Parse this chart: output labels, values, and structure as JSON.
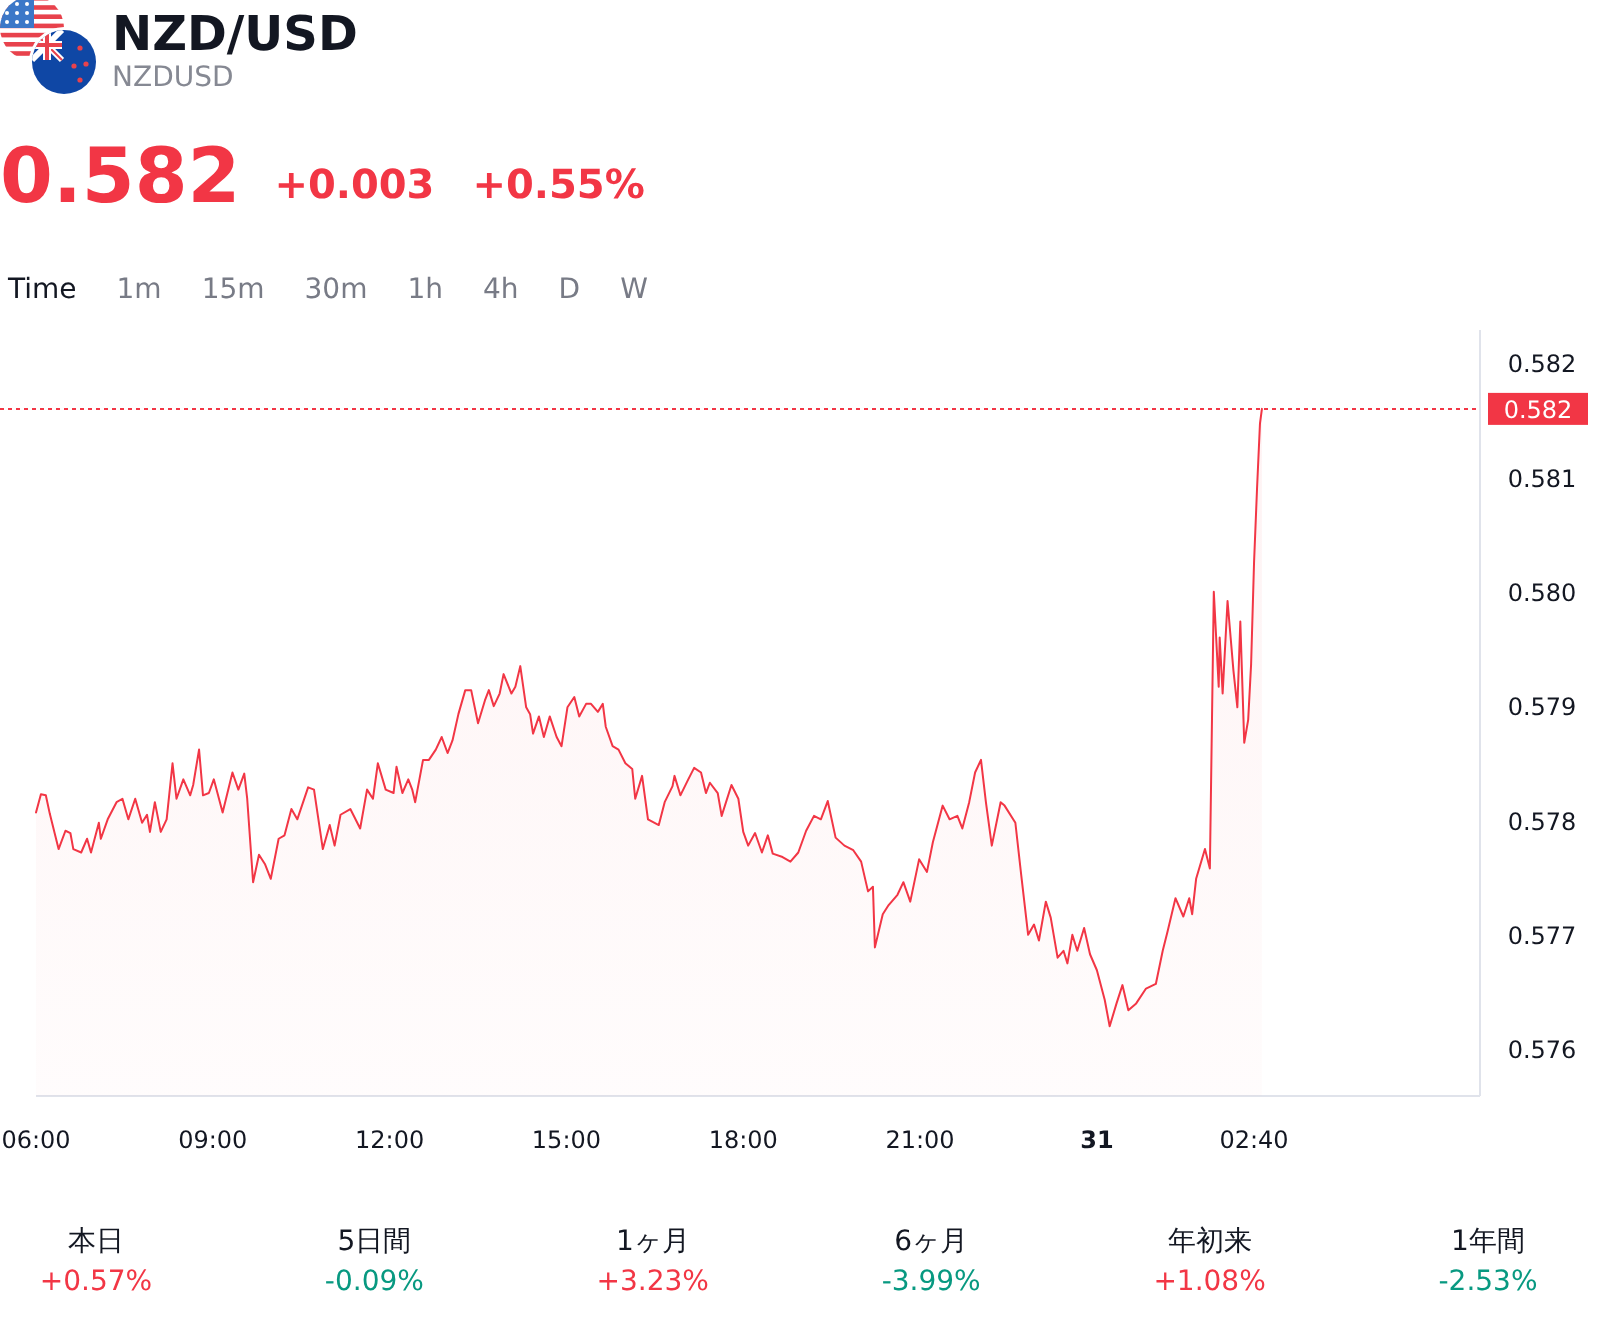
{
  "chart_data": [
    {
      "type": "other",
      "title": "NZD/USD",
      "subtitle": "NZDUSD",
      "color": "#f23645",
      "annotations": [
        "0.582",
        "+0.003",
        "+0.55%"
      ],
      "categories": [
        "Time",
        "1m",
        "15m",
        "30m",
        "1h",
        "4h",
        "D",
        "W"
      ],
      "colors": [
        "#131722",
        "#787b86",
        "#787b86",
        "#787b86",
        "#787b86",
        "#787b86",
        "#787b86",
        "#787b86"
      ]
    },
    {
      "type": "area",
      "color": "#f23645",
      "x": [
        "--01-30T06:00",
        "--01-30T06:05",
        "--01-30T06:10",
        "--01-30T06:14",
        "--01-30T06:23",
        "--01-30T06:30",
        "--01-30T06:35",
        "--01-30T06:38",
        "--01-30T06:46",
        "--01-30T06:52",
        "--01-30T06:56",
        "--01-30T07:04",
        "--01-30T07:06",
        "--01-30T07:13",
        "--01-30T07:22",
        "--01-30T07:28",
        "--01-30T07:34",
        "--01-30T07:41",
        "--01-30T07:48",
        "--01-30T07:53",
        "--01-30T07:56",
        "--01-30T08:01",
        "--01-30T08:07",
        "--01-30T08:13",
        "--01-30T08:19",
        "--01-30T08:23",
        "--01-30T08:30",
        "--01-30T08:37",
        "--01-30T08:40",
        "--01-30T08:46",
        "--01-30T08:50",
        "--01-30T08:56",
        "--01-30T09:01",
        "--01-30T09:10",
        "--01-30T09:20",
        "--01-30T09:26",
        "--01-30T09:32",
        "--01-30T09:35",
        "--01-30T09:41",
        "--01-30T09:47",
        "--01-30T09:53",
        "--01-30T09:59",
        "--01-30T10:07",
        "--01-30T10:13",
        "--01-30T10:20",
        "--01-30T10:26",
        "--01-30T10:37",
        "--01-30T10:43",
        "--01-30T10:52",
        "--01-30T10:59",
        "--01-30T11:04",
        "--01-30T11:10",
        "--01-30T11:20",
        "--01-30T11:30",
        "--01-30T11:37",
        "--01-30T11:43",
        "--01-30T11:48",
        "--01-30T11:56",
        "--01-30T12:04",
        "--01-30T12:07",
        "--01-30T12:13",
        "--01-30T12:19",
        "--01-30T12:23",
        "--01-30T12:26",
        "--01-30T12:34",
        "--01-30T12:40",
        "--01-30T12:47",
        "--01-30T12:53",
        "--01-30T12:59",
        "--01-30T13:04",
        "--01-30T13:10",
        "--01-30T13:17",
        "--01-30T13:23",
        "--01-30T13:30",
        "--01-30T13:37",
        "--01-30T13:41",
        "--01-30T13:46",
        "--01-30T13:52",
        "--01-30T13:56",
        "--01-30T14:04",
        "--01-30T14:08",
        "--01-30T14:13",
        "--01-30T14:19",
        "--01-30T14:23",
        "--01-30T14:26",
        "--01-30T14:32",
        "--01-30T14:37",
        "--01-30T14:43",
        "--01-30T14:50",
        "--01-30T14:55",
        "--01-30T15:01",
        "--01-30T15:08",
        "--01-30T15:13",
        "--01-30T15:20",
        "--01-30T15:25",
        "--01-30T15:32",
        "--01-30T15:37",
        "--01-30T15:40",
        "--01-30T15:47",
        "--01-30T15:53",
        "--01-30T16:00",
        "--01-30T16:07",
        "--01-30T16:10",
        "--01-30T16:17",
        "--01-30T16:23",
        "--01-30T16:34",
        "--01-30T16:40",
        "--01-30T16:48",
        "--01-30T16:50",
        "--01-30T16:56",
        "--01-30T17:04",
        "--01-30T17:10",
        "--01-30T17:17",
        "--01-30T17:22",
        "--01-30T17:26",
        "--01-30T17:34",
        "--01-30T17:38",
        "--01-30T17:48",
        "--01-30T17:55",
        "--01-30T18:00",
        "--01-30T18:05",
        "--01-30T18:12",
        "--01-30T18:19",
        "--01-30T18:25",
        "--01-30T18:30",
        "--01-30T18:40",
        "--01-30T18:48",
        "--01-30T18:56",
        "--01-30T19:04",
        "--01-30T19:12",
        "--01-30T19:19",
        "--01-30T19:26",
        "--01-30T19:34",
        "--01-30T19:43",
        "--01-30T19:52",
        "--01-30T20:00",
        "--01-30T20:07",
        "--01-30T20:12",
        "--01-30T20:14",
        "--01-30T20:22",
        "--01-30T20:28",
        "--01-30T20:37",
        "--01-30T20:43",
        "--01-30T20:50",
        "--01-30T20:59",
        "--01-30T21:07",
        "--01-30T21:13",
        "--01-30T21:23",
        "--01-30T21:30",
        "--01-30T21:38",
        "--01-30T21:43",
        "--01-30T21:50",
        "--01-30T21:56",
        "--01-30T22:02",
        "--01-30T22:07",
        "--01-30T22:13",
        "--01-30T22:22",
        "--01-30T22:26",
        "--01-30T22:37",
        "--01-30T22:43",
        "--01-30T22:50",
        "--01-30T22:56",
        "--01-30T23:01",
        "--01-30T23:08",
        "--01-30T23:13",
        "--01-30T23:20",
        "--01-30T23:26",
        "--01-30T23:30",
        "--01-30T23:35",
        "--01-30T23:40",
        "--01-30T23:47",
        "--01-30T23:53",
        "--01-31T00:00",
        "--01-31T00:08",
        "--01-31T00:13",
        "--01-31T00:20",
        "--01-31T00:26",
        "--01-31T00:32",
        "--01-31T00:40",
        "--01-31T00:50",
        "--01-31T01:00",
        "--01-31T01:07",
        "--01-31T01:12",
        "--01-31T01:20",
        "--01-31T01:28",
        "--01-31T01:34",
        "--01-31T01:37",
        "--01-31T01:41",
        "--01-31T01:50",
        "--01-31T01:55",
        "--01-31T01:59",
        "--01-31T02:04",
        "--01-31T02:05",
        "--01-31T02:08",
        "--01-31T02:13",
        "--01-31T02:19",
        "--01-31T02:23",
        "--01-31T02:26",
        "--01-31T02:30",
        "--01-31T02:34",
        "--01-31T02:37",
        "--01-31T02:40",
        "--01-31T02:43",
        "--01-31T02:46",
        "--01-31T02:48"
      ],
      "values": [
        0.57808,
        0.57824,
        0.57823,
        0.57807,
        0.57776,
        0.57792,
        0.5779,
        0.57776,
        0.57773,
        0.57785,
        0.57773,
        0.57799,
        0.57785,
        0.57802,
        0.57817,
        0.5782,
        0.57802,
        0.5782,
        0.57799,
        0.57806,
        0.57791,
        0.57817,
        0.57791,
        0.57802,
        0.57851,
        0.5782,
        0.57837,
        0.57823,
        0.57832,
        0.57863,
        0.57823,
        0.57825,
        0.57837,
        0.57808,
        0.57843,
        0.57828,
        0.57842,
        0.5782,
        0.57747,
        0.57771,
        0.57763,
        0.5775,
        0.57785,
        0.57788,
        0.57811,
        0.57802,
        0.5783,
        0.57828,
        0.57776,
        0.57797,
        0.57779,
        0.57806,
        0.57811,
        0.57794,
        0.57828,
        0.5782,
        0.57851,
        0.57828,
        0.57825,
        0.57848,
        0.57825,
        0.57837,
        0.57828,
        0.57817,
        0.57854,
        0.57854,
        0.57863,
        0.57874,
        0.5786,
        0.57871,
        0.57894,
        0.57915,
        0.57915,
        0.57886,
        0.57906,
        0.57915,
        0.57901,
        0.57912,
        0.57929,
        0.57912,
        0.57918,
        0.57936,
        0.579,
        0.57894,
        0.57877,
        0.57892,
        0.57874,
        0.57892,
        0.57874,
        0.57866,
        0.579,
        0.57909,
        0.57892,
        0.57903,
        0.57903,
        0.57896,
        0.57903,
        0.57883,
        0.57866,
        0.57863,
        0.57851,
        0.57846,
        0.5782,
        0.5784,
        0.57802,
        0.57797,
        0.57817,
        0.57831,
        0.5784,
        0.57823,
        0.57837,
        0.57847,
        0.57843,
        0.57825,
        0.57834,
        0.57825,
        0.57805,
        0.57832,
        0.5782,
        0.57791,
        0.57779,
        0.5779,
        0.57773,
        0.57788,
        0.57772,
        0.57769,
        0.57765,
        0.57773,
        0.57792,
        0.57805,
        0.57802,
        0.57818,
        0.57786,
        0.57779,
        0.57775,
        0.57765,
        0.57739,
        0.57743,
        0.5769,
        0.57719,
        0.57727,
        0.57736,
        0.57747,
        0.5773,
        0.57767,
        0.57756,
        0.57782,
        0.57814,
        0.57802,
        0.57805,
        0.57794,
        0.57817,
        0.57843,
        0.57854,
        0.57817,
        0.57779,
        0.57817,
        0.57814,
        0.57799,
        0.57753,
        0.57701,
        0.5771,
        0.57696,
        0.5773,
        0.57716,
        0.57681,
        0.57687,
        0.57676,
        0.57701,
        0.57687,
        0.57707,
        0.57684,
        0.5767,
        0.57644,
        0.57621,
        0.57641,
        0.57657,
        0.57635,
        0.57641,
        0.57654,
        0.57658,
        0.57687,
        0.57704,
        0.57733,
        0.57717,
        0.57733,
        0.57719,
        0.5775,
        0.57776,
        0.57759,
        0.58001,
        0.57918,
        0.57961,
        0.57912,
        0.57993,
        0.57932,
        0.579,
        0.57975,
        0.57869,
        0.57889,
        0.57938,
        0.58027,
        0.58091,
        0.58148,
        0.58161
      ],
      "xlim": [
        "--01-30T06:00",
        "--01-31T06:30"
      ],
      "ylim": [
        0.5756,
        0.5823
      ],
      "xticks": [
        {
          "value": "--01-30T06:00",
          "label": "06:00"
        },
        {
          "value": "--01-30T09:00",
          "label": "09:00"
        },
        {
          "value": "--01-30T12:00",
          "label": "12:00"
        },
        {
          "value": "--01-30T15:00",
          "label": "15:00"
        },
        {
          "value": "--01-30T18:00",
          "label": "18:00"
        },
        {
          "value": "--01-30T21:00",
          "label": "21:00"
        },
        {
          "value": "--01-31T00:00",
          "label": "31"
        },
        {
          "value": "--01-31T02:40",
          "label": "02:40"
        }
      ],
      "yticks": [
        0.576,
        0.577,
        0.578,
        0.579,
        {
          "value": 0.58,
          "label": "0.580"
        },
        0.581,
        0.582
      ],
      "ref_lines": [
        {
          "axis": "y",
          "value": 0.58161,
          "label": "0.582",
          "color": "#f23645",
          "line_style": "dotted"
        }
      ]
    },
    {
      "type": "other",
      "categories": [
        "本日",
        "5日間",
        "1ヶ月",
        "6ヶ月",
        "年初来",
        "1年間"
      ],
      "value_labels": [
        "+0.57%",
        "-0.09%",
        "+3.23%",
        "-3.99%",
        "+1.08%",
        "-2.53%"
      ],
      "colors": [
        "#f23645",
        "#089981",
        "#f23645",
        "#089981",
        "#f23645",
        "#089981"
      ]
    }
  ]
}
